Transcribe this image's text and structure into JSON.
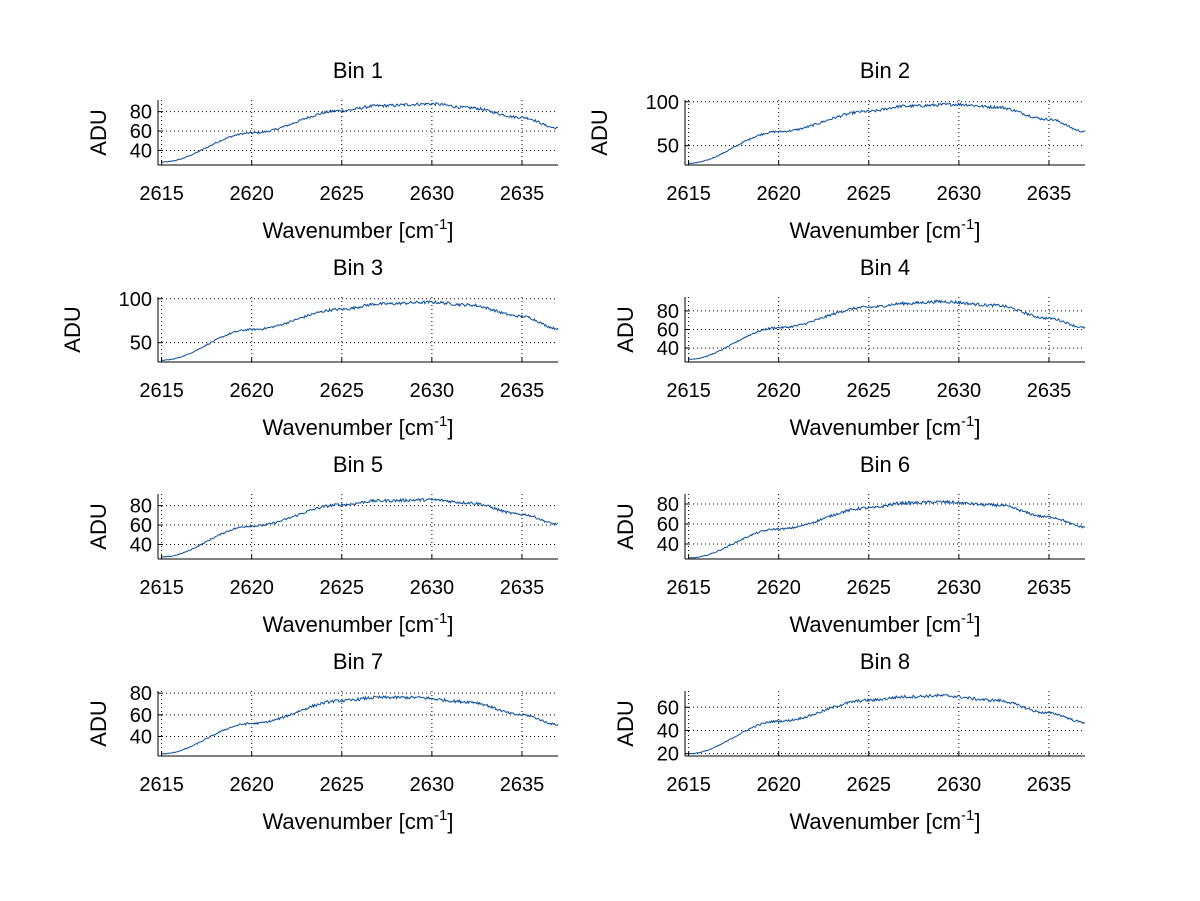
{
  "figure": {
    "background": "#ffffff",
    "line_color": "#0b4f9c",
    "grid_color": "#000000"
  },
  "chart_data": [
    {
      "type": "line",
      "title": "Bin 1",
      "xlabel": "Wavenumber [cm",
      "xlabel_sup": "-1",
      "xlabel_end": "]",
      "ylabel": "ADU",
      "xlim": [
        2614.8,
        2637
      ],
      "ylim": [
        25,
        92
      ],
      "xticks": [
        2615,
        2620,
        2625,
        2630,
        2635
      ],
      "yticks": [
        40,
        60,
        80
      ],
      "grid": true,
      "series": [
        {
          "name": "Bin 1",
          "x": [
            2615,
            2620,
            2625,
            2627,
            2630,
            2632,
            2635,
            2637
          ],
          "y": [
            28,
            58,
            81,
            86,
            88,
            84,
            74,
            63
          ]
        }
      ]
    },
    {
      "type": "line",
      "title": "Bin 2",
      "xlabel": "Wavenumber [cm",
      "xlabel_sup": "-1",
      "xlabel_end": "]",
      "ylabel": "ADU",
      "xlim": [
        2614.8,
        2637
      ],
      "ylim": [
        28,
        102
      ],
      "xticks": [
        2615,
        2620,
        2625,
        2630,
        2635
      ],
      "yticks": [
        50,
        100
      ],
      "grid": true,
      "series": [
        {
          "name": "Bin 2",
          "x": [
            2615,
            2620,
            2625,
            2627,
            2630,
            2632,
            2635,
            2637
          ],
          "y": [
            30,
            66,
            89,
            95,
            97,
            94,
            80,
            66
          ]
        }
      ]
    },
    {
      "type": "line",
      "title": "Bin 3",
      "xlabel": "Wavenumber [cm",
      "xlabel_sup": "-1",
      "xlabel_end": "]",
      "ylabel": "ADU",
      "xlim": [
        2614.8,
        2637
      ],
      "ylim": [
        28,
        102
      ],
      "xticks": [
        2615,
        2620,
        2625,
        2630,
        2635
      ],
      "yticks": [
        50,
        100
      ],
      "grid": true,
      "series": [
        {
          "name": "Bin 3",
          "x": [
            2615,
            2620,
            2625,
            2627,
            2630,
            2632,
            2635,
            2637
          ],
          "y": [
            30,
            65,
            88,
            94,
            96,
            93,
            80,
            66
          ]
        }
      ]
    },
    {
      "type": "line",
      "title": "Bin 4",
      "xlabel": "Wavenumber [cm",
      "xlabel_sup": "-1",
      "xlabel_end": "]",
      "ylabel": "ADU",
      "xlim": [
        2614.8,
        2637
      ],
      "ylim": [
        25,
        95
      ],
      "xticks": [
        2615,
        2620,
        2625,
        2630,
        2635
      ],
      "yticks": [
        40,
        60,
        80
      ],
      "grid": true,
      "series": [
        {
          "name": "Bin 4",
          "x": [
            2615,
            2620,
            2625,
            2627,
            2629,
            2632,
            2635,
            2637
          ],
          "y": [
            28,
            62,
            84,
            88,
            90,
            86,
            72,
            62
          ]
        }
      ]
    },
    {
      "type": "line",
      "title": "Bin 5",
      "xlabel": "Wavenumber [cm",
      "xlabel_sup": "-1",
      "xlabel_end": "]",
      "ylabel": "ADU",
      "xlim": [
        2614.8,
        2637
      ],
      "ylim": [
        25,
        92
      ],
      "xticks": [
        2615,
        2620,
        2625,
        2630,
        2635
      ],
      "yticks": [
        40,
        60,
        80
      ],
      "grid": true,
      "series": [
        {
          "name": "Bin 5",
          "x": [
            2615,
            2620,
            2625,
            2627,
            2630,
            2632,
            2635,
            2637
          ],
          "y": [
            27,
            59,
            81,
            85,
            86,
            83,
            71,
            61
          ]
        }
      ]
    },
    {
      "type": "line",
      "title": "Bin 6",
      "xlabel": "Wavenumber [cm",
      "xlabel_sup": "-1",
      "xlabel_end": "]",
      "ylabel": "ADU",
      "xlim": [
        2614.8,
        2637
      ],
      "ylim": [
        25,
        90
      ],
      "xticks": [
        2615,
        2620,
        2625,
        2630,
        2635
      ],
      "yticks": [
        40,
        60,
        80
      ],
      "grid": true,
      "series": [
        {
          "name": "Bin 6",
          "x": [
            2615,
            2620,
            2625,
            2627,
            2629,
            2632,
            2635,
            2637
          ],
          "y": [
            26,
            55,
            76,
            81,
            82,
            79,
            67,
            57
          ]
        }
      ]
    },
    {
      "type": "line",
      "title": "Bin 7",
      "xlabel": "Wavenumber [cm",
      "xlabel_sup": "-1",
      "xlabel_end": "]",
      "ylabel": "ADU",
      "xlim": [
        2614.8,
        2637
      ],
      "ylim": [
        22,
        82
      ],
      "xticks": [
        2615,
        2620,
        2625,
        2630,
        2635
      ],
      "yticks": [
        40,
        60,
        80
      ],
      "grid": true,
      "series": [
        {
          "name": "Bin 7",
          "x": [
            2615,
            2620,
            2625,
            2627,
            2629,
            2632,
            2635,
            2637
          ],
          "y": [
            24,
            52,
            73,
            76,
            76,
            72,
            60,
            51
          ]
        }
      ]
    },
    {
      "type": "line",
      "title": "Bin 8",
      "xlabel": "Wavenumber [cm",
      "xlabel_sup": "-1",
      "xlabel_end": "]",
      "ylabel": "ADU",
      "xlim": [
        2614.8,
        2637
      ],
      "ylim": [
        18,
        74
      ],
      "xticks": [
        2615,
        2620,
        2625,
        2630,
        2635
      ],
      "yticks": [
        20,
        40,
        60
      ],
      "grid": true,
      "series": [
        {
          "name": "Bin 8",
          "x": [
            2615,
            2620,
            2625,
            2627,
            2629,
            2632,
            2635,
            2637
          ],
          "y": [
            20,
            48,
            66,
            69,
            70,
            66,
            55,
            47
          ]
        }
      ]
    }
  ]
}
